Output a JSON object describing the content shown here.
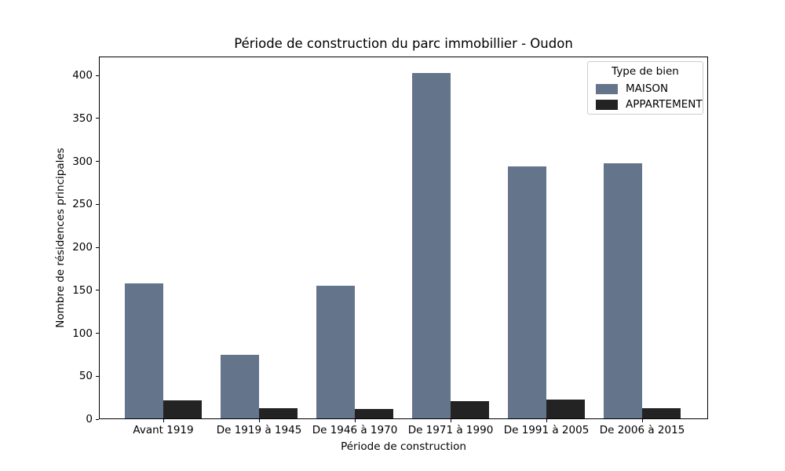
{
  "title": "Période de construction du parc immobillier - Oudon",
  "chart_data": {
    "type": "bar",
    "title": "Période de construction du parc immobillier - Oudon",
    "xlabel": "Période de construction",
    "ylabel": "Nombre de résidences principales",
    "categories": [
      "Avant 1919",
      "De 1919 à 1945",
      "De 1946 à 1970",
      "De 1971 à 1990",
      "De 1991 à 2005",
      "De 2006 à 2015"
    ],
    "series": [
      {
        "name": "MAISON",
        "color": "#64748B",
        "values": [
          157,
          74,
          154,
          402,
          293,
          297
        ]
      },
      {
        "name": "APPARTEMENT",
        "color": "#232323",
        "values": [
          21,
          12,
          11,
          20,
          22,
          12
        ]
      }
    ],
    "ylim": [
      0,
      422
    ],
    "yticks": [
      0,
      50,
      100,
      150,
      200,
      250,
      300,
      350,
      400
    ],
    "legend_title": "Type de bien",
    "legend_position": "upper right",
    "grid": false,
    "background": "#ffffff",
    "spine_color": "#000000",
    "legend_border_color": "#cccccc"
  }
}
